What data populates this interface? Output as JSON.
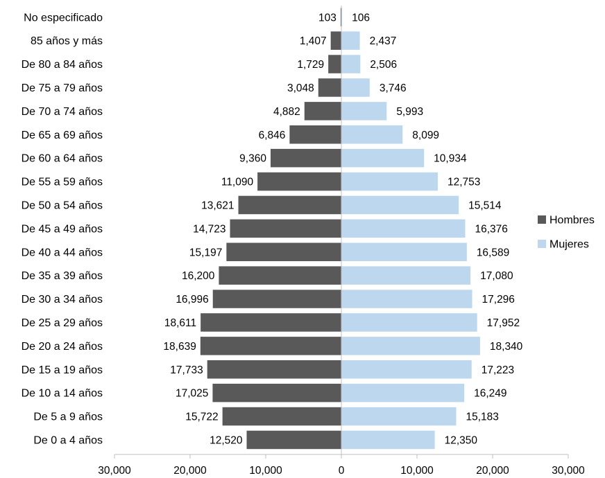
{
  "chart_data": {
    "type": "bar",
    "orientation": "horizontal",
    "layout": "population-pyramid",
    "categories": [
      "No especificado",
      "85 años y más",
      "De 80 a 84 años",
      "De 75 a 79 años",
      "De 70 a 74 años",
      "De 65 a 69 años",
      "De 60 a 64 años",
      "De 55 a 59 años",
      "De 50 a 54 años",
      "De 45 a 49 años",
      "De 40 a 44 años",
      "De 35 a 39 años",
      "De 30 a 34 años",
      "De 25 a 29 años",
      "De 20 a 24 años",
      "De 15 a 19 años",
      "De 10 a 14 años",
      "De 5 a 9 años",
      "De 0 a 4 años"
    ],
    "series": [
      {
        "name": "Hombres",
        "side": "left",
        "color": "#595959",
        "values": [
          103,
          1407,
          1729,
          3048,
          4882,
          6846,
          9360,
          11090,
          13621,
          14723,
          15197,
          16200,
          16996,
          18611,
          18639,
          17733,
          17025,
          15722,
          12520
        ],
        "value_labels": [
          "103",
          "1,407",
          "1,729",
          "3,048",
          "4,882",
          "6,846",
          "9,360",
          "11,090",
          "13,621",
          "14,723",
          "15,197",
          "16,200",
          "16,996",
          "18,611",
          "18,639",
          "17,733",
          "17,025",
          "15,722",
          "12,520"
        ]
      },
      {
        "name": "Mujeres",
        "side": "right",
        "color": "#bdd7ee",
        "values": [
          106,
          2437,
          2506,
          3746,
          5993,
          8099,
          10934,
          12753,
          15514,
          16376,
          16589,
          17080,
          17296,
          17952,
          18340,
          17223,
          16249,
          15183,
          12350
        ],
        "value_labels": [
          "106",
          "2,437",
          "2,506",
          "3,746",
          "5,993",
          "8,099",
          "10,934",
          "12,753",
          "15,514",
          "16,376",
          "16,589",
          "17,080",
          "17,296",
          "17,952",
          "18,340",
          "17,223",
          "16,249",
          "15,183",
          "12,350"
        ]
      }
    ],
    "xlim": [
      -30000,
      30000
    ],
    "x_ticks": [
      -30000,
      -20000,
      -10000,
      0,
      10000,
      20000,
      30000
    ],
    "x_tick_labels": [
      "30,000",
      "20,000",
      "10,000",
      "0",
      "10,000",
      "20,000",
      "30,000"
    ],
    "grid": false,
    "legend": "right",
    "title": "",
    "xlabel": "",
    "ylabel": ""
  }
}
